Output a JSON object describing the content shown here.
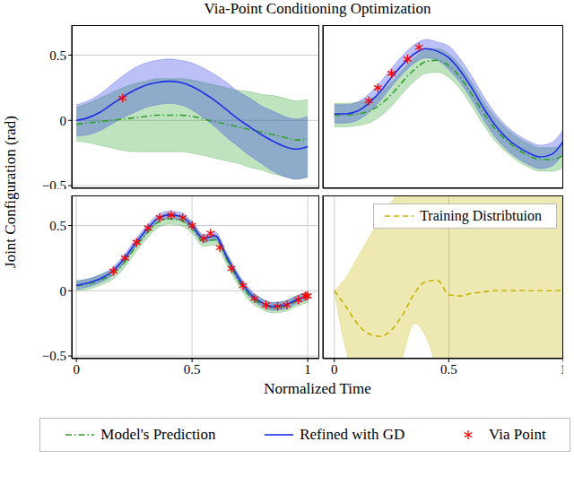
{
  "title": "Via-Point Conditioning Optimization",
  "x_label": "Normalized Time",
  "y_label": "Joint Configuration (rad)",
  "legend": "bottom",
  "chart_data": [
    {
      "type": "line",
      "xlim": [
        -0.02,
        1.05
      ],
      "ylim": [
        -0.52,
        0.73
      ],
      "xticks": [
        0,
        0.5,
        1
      ],
      "yticks": [
        {
          "value": -0.5,
          "label": "−0.5"
        },
        0,
        0.5
      ],
      "grid": true,
      "tick_labels": "y",
      "x": [
        0,
        0.05,
        0.1,
        0.15,
        0.2,
        0.25,
        0.3,
        0.35,
        0.4,
        0.45,
        0.5,
        0.55,
        0.6,
        0.65,
        0.7,
        0.75,
        0.8,
        0.85,
        0.9,
        0.95,
        1
      ],
      "series": [
        {
          "name": "Model's Prediction",
          "color": "#2ca02c",
          "line_style": "dashdot",
          "values": [
            -0.03,
            -0.02,
            -0.01,
            0,
            0.01,
            0.02,
            0.03,
            0.04,
            0.04,
            0.04,
            0.03,
            0.01,
            -0.01,
            -0.03,
            -0.05,
            -0.07,
            -0.09,
            -0.11,
            -0.13,
            -0.15,
            -0.14
          ],
          "lower": [
            -0.16,
            -0.17,
            -0.19,
            -0.21,
            -0.23,
            -0.24,
            -0.24,
            -0.24,
            -0.24,
            -0.24,
            -0.25,
            -0.27,
            -0.29,
            -0.31,
            -0.33,
            -0.36,
            -0.38,
            -0.41,
            -0.43,
            -0.45,
            -0.44
          ],
          "upper": [
            0.1,
            0.13,
            0.17,
            0.21,
            0.25,
            0.28,
            0.3,
            0.32,
            0.32,
            0.32,
            0.31,
            0.29,
            0.27,
            0.25,
            0.23,
            0.22,
            0.2,
            0.19,
            0.17,
            0.15,
            0.16
          ]
        },
        {
          "name": "Refined with GD",
          "color": "#1f2ee6",
          "line_style": "solid",
          "values": [
            0,
            0.02,
            0.06,
            0.12,
            0.18,
            0.23,
            0.27,
            0.29,
            0.3,
            0.29,
            0.26,
            0.21,
            0.15,
            0.08,
            0.01,
            -0.05,
            -0.11,
            -0.16,
            -0.2,
            -0.22,
            -0.2
          ],
          "lower": [
            -0.12,
            -0.11,
            -0.08,
            -0.03,
            0.02,
            0.06,
            0.1,
            0.12,
            0.13,
            0.12,
            0.08,
            0.02,
            -0.05,
            -0.13,
            -0.2,
            -0.27,
            -0.33,
            -0.39,
            -0.43,
            -0.45,
            -0.43
          ],
          "upper": [
            0.12,
            0.15,
            0.2,
            0.27,
            0.34,
            0.4,
            0.44,
            0.46,
            0.47,
            0.46,
            0.44,
            0.4,
            0.35,
            0.29,
            0.22,
            0.17,
            0.11,
            0.07,
            0.03,
            0.01,
            0.03
          ]
        },
        {
          "name": "Via Point",
          "type": "scatter",
          "marker": "asterisk",
          "color": "#ff0000",
          "x": [
            0.2
          ],
          "values": [
            0.17
          ]
        }
      ]
    },
    {
      "type": "line",
      "xlim": [
        -0.05,
        1
      ],
      "ylim": [
        -0.52,
        0.73
      ],
      "xticks": [
        0,
        0.5,
        1
      ],
      "yticks": [
        {
          "value": -0.5,
          "label": "−0.5"
        },
        0,
        0.5
      ],
      "grid": true,
      "tick_labels": false,
      "x": [
        0,
        0.05,
        0.1,
        0.15,
        0.2,
        0.25,
        0.3,
        0.35,
        0.4,
        0.45,
        0.5,
        0.55,
        0.6,
        0.65,
        0.7,
        0.75,
        0.8,
        0.85,
        0.9,
        0.95,
        1
      ],
      "series": [
        {
          "name": "Model's Prediction",
          "color": "#2ca02c",
          "line_style": "dashdot",
          "values": [
            0.04,
            0.04,
            0.05,
            0.07,
            0.12,
            0.2,
            0.3,
            0.39,
            0.45,
            0.46,
            0.42,
            0.33,
            0.2,
            0.06,
            -0.06,
            -0.15,
            -0.22,
            -0.27,
            -0.3,
            -0.3,
            -0.27
          ],
          "lower": [
            -0.05,
            -0.05,
            -0.04,
            -0.02,
            0.03,
            0.11,
            0.21,
            0.3,
            0.36,
            0.37,
            0.33,
            0.24,
            0.11,
            -0.03,
            -0.15,
            -0.24,
            -0.31,
            -0.36,
            -0.39,
            -0.39,
            -0.36
          ],
          "upper": [
            0.13,
            0.13,
            0.14,
            0.16,
            0.21,
            0.29,
            0.39,
            0.48,
            0.54,
            0.55,
            0.51,
            0.42,
            0.29,
            0.15,
            0.03,
            -0.06,
            -0.13,
            -0.18,
            -0.21,
            -0.21,
            -0.18
          ]
        },
        {
          "name": "Refined with GD",
          "color": "#1f2ee6",
          "line_style": "solid",
          "values": [
            0.05,
            0.05,
            0.07,
            0.13,
            0.22,
            0.33,
            0.43,
            0.51,
            0.55,
            0.53,
            0.48,
            0.38,
            0.25,
            0.1,
            -0.03,
            -0.13,
            -0.2,
            -0.25,
            -0.28,
            -0.26,
            -0.16
          ],
          "lower": [
            -0.02,
            -0.02,
            0,
            0.06,
            0.15,
            0.26,
            0.36,
            0.44,
            0.48,
            0.46,
            0.39,
            0.29,
            0.16,
            0.01,
            -0.12,
            -0.22,
            -0.29,
            -0.34,
            -0.37,
            -0.35,
            -0.25
          ],
          "upper": [
            0.12,
            0.12,
            0.14,
            0.2,
            0.29,
            0.4,
            0.5,
            0.58,
            0.62,
            0.6,
            0.57,
            0.47,
            0.34,
            0.19,
            0.06,
            -0.04,
            -0.11,
            -0.16,
            -0.19,
            -0.17,
            -0.07
          ]
        },
        {
          "name": "Via Point",
          "type": "scatter",
          "marker": "asterisk",
          "color": "#ff0000",
          "x": [
            0.15,
            0.19,
            0.25,
            0.32,
            0.37
          ],
          "values": [
            0.15,
            0.25,
            0.36,
            0.47,
            0.56
          ]
        }
      ]
    },
    {
      "type": "line",
      "xlim": [
        -0.02,
        1.05
      ],
      "ylim": [
        -0.52,
        0.73
      ],
      "xticks": [
        0,
        0.5,
        1
      ],
      "yticks": [
        {
          "value": -0.5,
          "label": "−0.5"
        },
        0,
        0.5
      ],
      "grid": true,
      "tick_labels": true,
      "x": [
        0,
        0.05,
        0.1,
        0.15,
        0.2,
        0.25,
        0.3,
        0.35,
        0.4,
        0.45,
        0.5,
        0.55,
        0.6,
        0.65,
        0.7,
        0.75,
        0.8,
        0.85,
        0.9,
        0.95,
        1
      ],
      "series": [
        {
          "name": "Model's Prediction",
          "color": "#2ca02c",
          "line_style": "dashdot",
          "values": [
            0.04,
            0.05,
            0.08,
            0.12,
            0.2,
            0.32,
            0.43,
            0.52,
            0.55,
            0.54,
            0.48,
            0.38,
            0.39,
            0.24,
            0.08,
            -0.04,
            -0.1,
            -0.13,
            -0.12,
            -0.08,
            -0.05
          ],
          "lower": [
            0,
            0.01,
            0.04,
            0.08,
            0.16,
            0.28,
            0.39,
            0.48,
            0.51,
            0.5,
            0.44,
            0.34,
            0.35,
            0.2,
            0.04,
            -0.08,
            -0.14,
            -0.17,
            -0.16,
            -0.12,
            -0.09
          ],
          "upper": [
            0.08,
            0.09,
            0.12,
            0.16,
            0.24,
            0.36,
            0.47,
            0.56,
            0.59,
            0.58,
            0.52,
            0.42,
            0.43,
            0.28,
            0.12,
            0,
            -0.06,
            -0.09,
            -0.08,
            -0.04,
            -0.01
          ]
        },
        {
          "name": "Refined with GD",
          "color": "#1f2ee6",
          "line_style": "solid",
          "values": [
            0.04,
            0.06,
            0.09,
            0.14,
            0.23,
            0.35,
            0.46,
            0.55,
            0.58,
            0.57,
            0.5,
            0.4,
            0.42,
            0.26,
            0.1,
            -0.02,
            -0.09,
            -0.12,
            -0.11,
            -0.07,
            -0.04
          ],
          "lower": [
            0.01,
            0.03,
            0.06,
            0.11,
            0.2,
            0.32,
            0.43,
            0.52,
            0.55,
            0.54,
            0.47,
            0.37,
            0.39,
            0.23,
            0.07,
            -0.05,
            -0.12,
            -0.15,
            -0.14,
            -0.1,
            -0.07
          ],
          "upper": [
            0.07,
            0.09,
            0.12,
            0.17,
            0.26,
            0.38,
            0.49,
            0.58,
            0.61,
            0.6,
            0.53,
            0.43,
            0.45,
            0.29,
            0.13,
            0.01,
            -0.06,
            -0.09,
            -0.08,
            -0.04,
            -0.01
          ]
        },
        {
          "name": "Via Point",
          "type": "scatter",
          "marker": "asterisk",
          "color": "#ff0000",
          "x": [
            0.16,
            0.21,
            0.26,
            0.31,
            0.36,
            0.41,
            0.46,
            0.5,
            0.55,
            0.58,
            0.62,
            0.67,
            0.72,
            0.77,
            0.82,
            0.87,
            0.91,
            0.96,
            0.99,
            1
          ],
          "values": [
            0.15,
            0.25,
            0.37,
            0.48,
            0.56,
            0.58,
            0.56,
            0.5,
            0.4,
            0.44,
            0.33,
            0.17,
            0.04,
            -0.06,
            -0.11,
            -0.12,
            -0.11,
            -0.07,
            -0.04,
            -0.04
          ]
        }
      ]
    },
    {
      "type": "line",
      "xlim": [
        -0.05,
        1
      ],
      "ylim": [
        -0.52,
        0.73
      ],
      "xticks": [
        0,
        0.5,
        1
      ],
      "yticks": [
        {
          "value": -0.5,
          "label": "−0.5"
        },
        0,
        0.5
      ],
      "grid": true,
      "tick_labels": "x",
      "legend": "top-right",
      "x": [
        0,
        0.05,
        0.1,
        0.15,
        0.2,
        0.25,
        0.3,
        0.35,
        0.4,
        0.45,
        0.5,
        0.55,
        0.6,
        0.65,
        0.7,
        0.75,
        0.8,
        0.85,
        0.9,
        0.95,
        1
      ],
      "series": [
        {
          "name": "Training Distribtuion",
          "color": "#c8b400",
          "line_style": "dashed",
          "values": [
            0,
            -0.12,
            -0.25,
            -0.33,
            -0.35,
            -0.3,
            -0.18,
            -0.02,
            0.07,
            0.08,
            -0.03,
            -0.04,
            -0.02,
            -0.01,
            0,
            0,
            0,
            0,
            0,
            0,
            0
          ],
          "lower": [
            0,
            -0.45,
            -0.7,
            -0.85,
            -0.9,
            -0.85,
            -0.5,
            -0.25,
            -0.35,
            -0.6,
            -0.85,
            -1,
            -1,
            -1,
            -1,
            -1,
            -1,
            -1,
            -1,
            -1,
            -1
          ],
          "upper": [
            0,
            0.1,
            0.25,
            0.4,
            0.55,
            0.68,
            0.8,
            0.9,
            1,
            1,
            1,
            1,
            1,
            1,
            1,
            1,
            1,
            1,
            1,
            1,
            1
          ]
        }
      ]
    }
  ]
}
